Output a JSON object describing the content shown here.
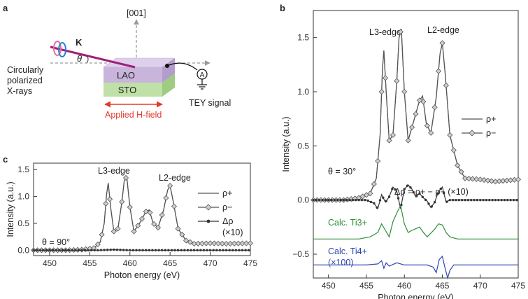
{
  "figure": {
    "panels": {
      "a": {
        "label": "a",
        "direction_label": "[001]",
        "k_label": "K",
        "theta_label": "θ",
        "source_label_lines": [
          "Circularly",
          "polarized",
          "X-rays"
        ],
        "layer_top": "LAO",
        "layer_bottom": "STO",
        "meter_label": "A",
        "tey_label": "TEY signal",
        "field_label": "Applied H-field",
        "colors": {
          "beam": "#a0207a",
          "field": "#e23b2e",
          "lao": "#c9b5dc",
          "sto": "#bfe0a6",
          "ring_pink": "#e76ba0",
          "ring_blue": "#2a7fd4"
        }
      },
      "b": {
        "label": "b",
        "edge_labels": [
          "L3-edge",
          "L2-edge"
        ],
        "theta_text": "θ = 30°",
        "delta_text": "Δρ = ρ+ − ρ− (×10)",
        "calc3_text": "Calc. Ti3+",
        "calc4_lines": [
          "Calc. Ti4+",
          "(×100)"
        ],
        "legend": [
          "ρ+",
          "ρ−"
        ]
      },
      "c": {
        "label": "c",
        "edge_labels": [
          "L3-edge",
          "L2-edge"
        ],
        "theta_text": "θ = 90°",
        "legend": [
          "ρ+",
          "ρ−",
          "Δρ",
          "(×10)"
        ]
      }
    }
  },
  "chart_data": [
    {
      "panel": "b",
      "type": "line",
      "xlabel": "Photon energy (eV)",
      "ylabel": "Intensity (a.u.)",
      "xlim": [
        448,
        475
      ],
      "ylim": [
        -0.72,
        1.75
      ],
      "xticks": [
        450,
        455,
        460,
        465,
        470,
        475
      ],
      "yticks": [
        -0.5,
        0.0,
        0.5,
        1.0,
        1.5
      ],
      "ytick_labels": [
        "−0.5",
        "0.0",
        "0.5",
        "1.0",
        "1.5"
      ],
      "legend_position": "right",
      "series": [
        {
          "name": "ρ+",
          "color": "#555555",
          "x": [
            448,
            452,
            454,
            455.5,
            456.3,
            456.8,
            457.1,
            457.3,
            457.6,
            458.0,
            458.5,
            459.0,
            459.3,
            459.6,
            460.0,
            460.5,
            461.2,
            462.0,
            462.4,
            462.9,
            463.5,
            464.2,
            464.7,
            465.0,
            465.4,
            466.0,
            467.0,
            468.0,
            470.0,
            472.0,
            475.0
          ],
          "y": [
            0.0,
            0.0,
            0.02,
            0.06,
            0.2,
            0.6,
            1.2,
            1.38,
            1.0,
            0.55,
            0.6,
            1.1,
            1.5,
            1.58,
            1.0,
            0.55,
            0.72,
            0.92,
            0.96,
            0.7,
            0.62,
            0.95,
            1.35,
            1.45,
            1.15,
            0.6,
            0.32,
            0.2,
            0.19,
            0.17,
            0.19
          ]
        },
        {
          "name": "ρ−",
          "color": "#555555",
          "marker": "diamond",
          "x": [
            448,
            452,
            454,
            455.5,
            456.3,
            456.8,
            457.1,
            457.3,
            457.6,
            458.0,
            458.5,
            459.0,
            459.3,
            459.6,
            460.0,
            460.5,
            461.2,
            462.0,
            462.4,
            462.9,
            463.5,
            464.2,
            464.7,
            465.0,
            465.4,
            466.0,
            467.0,
            468.0,
            470.0,
            472.0,
            475.0
          ],
          "y": [
            0.0,
            0.0,
            0.02,
            0.06,
            0.2,
            0.6,
            1.2,
            1.38,
            1.0,
            0.55,
            0.6,
            1.1,
            1.5,
            1.58,
            1.0,
            0.55,
            0.72,
            0.92,
            0.96,
            0.7,
            0.62,
            0.95,
            1.35,
            1.45,
            1.15,
            0.6,
            0.32,
            0.2,
            0.19,
            0.17,
            0.19
          ]
        },
        {
          "name": "Δρ",
          "color": "#333333",
          "marker": "dot",
          "x": [
            448,
            452,
            455,
            456.0,
            456.5,
            457.0,
            457.5,
            458.0,
            458.5,
            459.0,
            459.5,
            460.0,
            460.5,
            461.0,
            461.5,
            462.0,
            462.5,
            463.0,
            463.5,
            464.0,
            464.5,
            465.0,
            465.5,
            466.0,
            467.0,
            470.0,
            475.0
          ],
          "y": [
            0.0,
            0.0,
            0.0,
            -0.03,
            -0.08,
            0.05,
            -0.02,
            0.03,
            0.12,
            0.08,
            -0.08,
            0.1,
            0.14,
            0.1,
            0.03,
            0.06,
            0.02,
            -0.01,
            -0.07,
            -0.02,
            0.08,
            0.12,
            -0.02,
            0.0,
            0.0,
            0.0,
            0.0
          ]
        },
        {
          "name": "Calc. Ti3+",
          "color": "#2e8b3a",
          "x": [
            448,
            454,
            455.5,
            456.5,
            457.0,
            457.5,
            458.0,
            458.5,
            459.0,
            459.5,
            460.0,
            460.5,
            461.0,
            462.0,
            462.5,
            463.0,
            464.0,
            464.5,
            465.0,
            465.5,
            466.0,
            467.0,
            470.0,
            475.0
          ],
          "y": [
            -0.36,
            -0.36,
            -0.34,
            -0.3,
            -0.22,
            -0.28,
            -0.34,
            -0.2,
            -0.12,
            -0.05,
            -0.22,
            -0.3,
            -0.28,
            -0.25,
            -0.3,
            -0.34,
            -0.27,
            -0.22,
            -0.23,
            -0.3,
            -0.34,
            -0.36,
            -0.36,
            -0.36
          ]
        },
        {
          "name": "Calc. Ti4+",
          "color": "#2f47b0",
          "x": [
            448,
            455,
            456.5,
            457.0,
            457.3,
            457.6,
            458.0,
            459.0,
            460.0,
            462.0,
            463.0,
            463.8,
            464.2,
            464.6,
            465.0,
            465.3,
            465.7,
            466.0,
            466.5,
            468.0,
            475.0
          ],
          "y": [
            -0.6,
            -0.6,
            -0.59,
            -0.56,
            -0.63,
            -0.58,
            -0.61,
            -0.58,
            -0.6,
            -0.6,
            -0.6,
            -0.62,
            -0.67,
            -0.55,
            -0.52,
            -0.61,
            -0.72,
            -0.65,
            -0.6,
            -0.6,
            -0.6
          ]
        }
      ]
    },
    {
      "panel": "c",
      "type": "line",
      "xlabel": "Photon energy (eV)",
      "ylabel": "Intensity (a.u.)",
      "xlim": [
        448,
        475
      ],
      "ylim": [
        -0.1,
        1.62
      ],
      "xticks": [
        450,
        455,
        460,
        465,
        470,
        475
      ],
      "yticks": [
        0.0,
        0.5,
        1.0,
        1.5
      ],
      "ytick_labels": [
        "0.0",
        "0.5",
        "1.0",
        "1.5"
      ],
      "legend_position": "right",
      "series": [
        {
          "name": "ρ+",
          "color": "#555555",
          "x": [
            448,
            452,
            454,
            455.5,
            456.3,
            456.8,
            457.1,
            457.3,
            457.6,
            458.0,
            458.5,
            459.0,
            459.3,
            459.6,
            460.0,
            460.5,
            461.2,
            462.0,
            462.4,
            462.9,
            463.5,
            464.2,
            464.7,
            465.0,
            465.4,
            466.0,
            467.0,
            468.0,
            470.0,
            472.0,
            475.0
          ],
          "y": [
            0.0,
            0.0,
            0.01,
            0.04,
            0.15,
            0.5,
            1.05,
            1.25,
            0.8,
            0.35,
            0.4,
            0.9,
            1.3,
            1.37,
            0.8,
            0.35,
            0.5,
            0.72,
            0.75,
            0.5,
            0.42,
            0.75,
            1.12,
            1.2,
            0.9,
            0.4,
            0.18,
            0.12,
            0.13,
            0.12,
            0.13
          ]
        },
        {
          "name": "ρ−",
          "color": "#555555",
          "marker": "diamond",
          "x": [
            448,
            452,
            454,
            455.5,
            456.3,
            456.8,
            457.1,
            457.3,
            457.6,
            458.0,
            458.5,
            459.0,
            459.3,
            459.6,
            460.0,
            460.5,
            461.2,
            462.0,
            462.4,
            462.9,
            463.5,
            464.2,
            464.7,
            465.0,
            465.4,
            466.0,
            467.0,
            468.0,
            470.0,
            472.0,
            475.0
          ],
          "y": [
            0.0,
            0.0,
            0.01,
            0.04,
            0.15,
            0.5,
            1.05,
            1.25,
            0.8,
            0.35,
            0.4,
            0.9,
            1.3,
            1.37,
            0.8,
            0.35,
            0.5,
            0.72,
            0.75,
            0.5,
            0.42,
            0.75,
            1.12,
            1.2,
            0.9,
            0.4,
            0.18,
            0.12,
            0.13,
            0.12,
            0.13
          ]
        },
        {
          "name": "Δρ",
          "color": "#333333",
          "marker": "dot",
          "x": [
            448,
            452,
            456,
            458,
            460,
            462,
            464,
            466,
            468,
            470,
            472,
            475
          ],
          "y": [
            0.0,
            0.0,
            0.0,
            0.01,
            0.0,
            0.0,
            0.0,
            0.0,
            0.0,
            0.0,
            0.0,
            0.0
          ]
        }
      ]
    }
  ]
}
